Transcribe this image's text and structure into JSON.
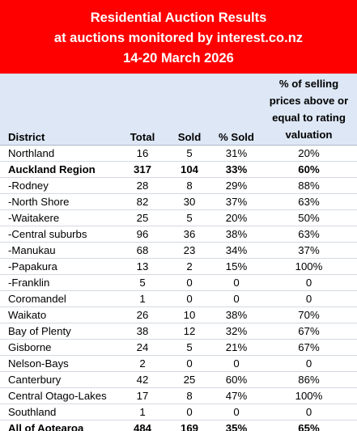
{
  "banner": {
    "line1": "Residential Auction Results",
    "line2": "at auctions monitored by interest.co.nz",
    "line3": "14-20 March 2026"
  },
  "chart_data": {
    "type": "table",
    "title": "Residential Auction Results at auctions monitored by interest.co.nz 14-20 March 2026",
    "columns": [
      "District",
      "Total",
      "Sold",
      "% Sold",
      "% of selling prices above or equal to rating valuation"
    ],
    "header_val_lines": [
      "% of selling",
      "prices above or",
      "equal to rating",
      "valuation"
    ],
    "rows": [
      {
        "district": "Northland",
        "total": "16",
        "sold": "5",
        "pct_sold": "31%",
        "above_rv": "20%",
        "bold": false
      },
      {
        "district": "Auckland Region",
        "total": "317",
        "sold": "104",
        "pct_sold": "33%",
        "above_rv": "60%",
        "bold": true
      },
      {
        "district": "-Rodney",
        "total": "28",
        "sold": "8",
        "pct_sold": "29%",
        "above_rv": "88%",
        "bold": false
      },
      {
        "district": "-North Shore",
        "total": "82",
        "sold": "30",
        "pct_sold": "37%",
        "above_rv": "63%",
        "bold": false
      },
      {
        "district": "-Waitakere",
        "total": "25",
        "sold": "5",
        "pct_sold": "20%",
        "above_rv": "50%",
        "bold": false
      },
      {
        "district": "-Central suburbs",
        "total": "96",
        "sold": "36",
        "pct_sold": "38%",
        "above_rv": "63%",
        "bold": false
      },
      {
        "district": "-Manukau",
        "total": "68",
        "sold": "23",
        "pct_sold": "34%",
        "above_rv": "37%",
        "bold": false
      },
      {
        "district": "-Papakura",
        "total": "13",
        "sold": "2",
        "pct_sold": "15%",
        "above_rv": "100%",
        "bold": false
      },
      {
        "district": "-Franklin",
        "total": "5",
        "sold": "0",
        "pct_sold": "0",
        "above_rv": "0",
        "bold": false
      },
      {
        "district": "Coromandel",
        "total": "1",
        "sold": "0",
        "pct_sold": "0",
        "above_rv": "0",
        "bold": false
      },
      {
        "district": "Waikato",
        "total": "26",
        "sold": "10",
        "pct_sold": "38%",
        "above_rv": "70%",
        "bold": false
      },
      {
        "district": "Bay of Plenty",
        "total": "38",
        "sold": "12",
        "pct_sold": "32%",
        "above_rv": "67%",
        "bold": false
      },
      {
        "district": "Gisborne",
        "total": "24",
        "sold": "5",
        "pct_sold": "21%",
        "above_rv": "67%",
        "bold": false
      },
      {
        "district": "Nelson-Bays",
        "total": "2",
        "sold": "0",
        "pct_sold": "0",
        "above_rv": "0",
        "bold": false
      },
      {
        "district": "Canterbury",
        "total": "42",
        "sold": "25",
        "pct_sold": "60%",
        "above_rv": "86%",
        "bold": false
      },
      {
        "district": "Central Otago-Lakes",
        "total": "17",
        "sold": "8",
        "pct_sold": "47%",
        "above_rv": "100%",
        "bold": false
      },
      {
        "district": "Southland",
        "total": "1",
        "sold": "0",
        "pct_sold": "0",
        "above_rv": "0",
        "bold": false
      },
      {
        "district": "All of Aotearoa",
        "total": "484",
        "sold": "169",
        "pct_sold": "35%",
        "above_rv": "65%",
        "bold": true
      }
    ]
  },
  "colors": {
    "banner_bg": "#ff0000",
    "banner_text": "#ffffff",
    "header_bg": "#dde7f5"
  }
}
